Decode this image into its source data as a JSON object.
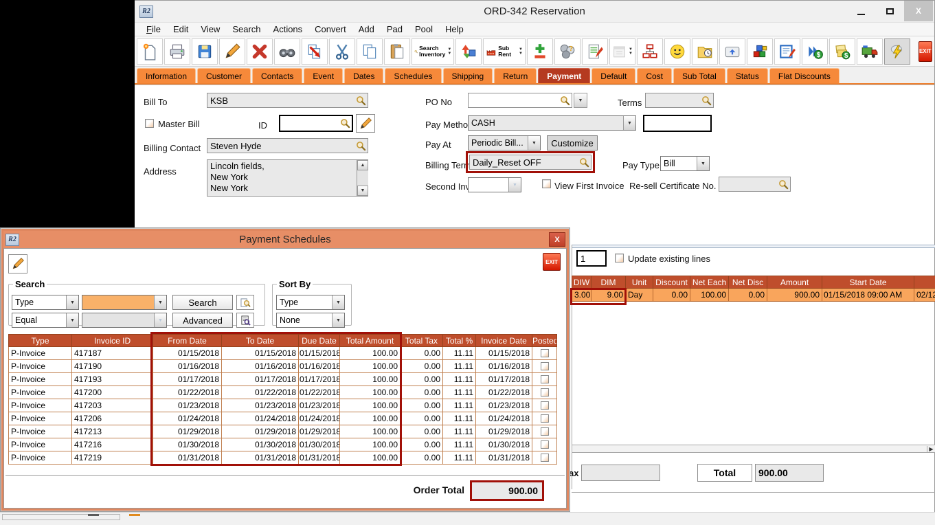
{
  "colors": {
    "accent_orange": "#f6893a",
    "active_tab_red": "#b53a20",
    "grid_header_red": "#bf4e2c",
    "highlight_red": "#a11008",
    "row_orange": "#f9a55c",
    "dialog_titlebar": "#e78e66",
    "exit_red": "#d41800"
  },
  "glyphs": {
    "down": "▼",
    "up": "▲",
    "right": "▶"
  },
  "window": {
    "app_badge": "R2",
    "title": "ORD-342 Reservation",
    "close": "X"
  },
  "menu": {
    "items": [
      "File",
      "Edit",
      "View",
      "Search",
      "Actions",
      "Convert",
      "Add",
      "Pad",
      "Pool",
      "Help"
    ]
  },
  "toolbar": {
    "search_inventory_line1": "Search",
    "search_inventory_line2": "Inventory",
    "sub_rent": "Sub Rent",
    "exit": "EXIT",
    "icons": [
      "new-document",
      "print",
      "save",
      "edit-pencil",
      "delete",
      "find-binoculars",
      "copy-special",
      "cut",
      "copy",
      "paste",
      "search-inventory",
      "transfer",
      "sub-rent",
      "add-line",
      "group-question",
      "notepad",
      "calendar",
      "hierarchy",
      "smiley",
      "folder-clock",
      "keyboard-key",
      "cubes",
      "memo-edit",
      "dollar-forward",
      "invoice-dollar",
      "truck",
      "lightning",
      "exit"
    ]
  },
  "tabs": {
    "active": "Payment",
    "items": [
      "Information",
      "Customer",
      "Contacts",
      "Event",
      "Dates",
      "Schedules",
      "Shipping",
      "Return",
      "Payment",
      "Default",
      "Cost",
      "Sub Total",
      "Status",
      "Flat Discounts"
    ]
  },
  "form": {
    "bill_to": {
      "label": "Bill To",
      "value": "KSB"
    },
    "po_no": {
      "label": "PO No",
      "value": ""
    },
    "terms": {
      "label": "Terms",
      "value": ""
    },
    "master_bill": {
      "label": "Master Bill",
      "checked": false
    },
    "id": {
      "label": "ID",
      "value": ""
    },
    "pay_method": {
      "label": "Pay Method",
      "value": "CASH"
    },
    "pay_method_extra": {
      "value": ""
    },
    "pay_at": {
      "label": "Pay At",
      "value": "Periodic Bill...",
      "customize": "Customize"
    },
    "billing_contact": {
      "label": "Billing Contact",
      "value": "Steven Hyde"
    },
    "address": {
      "label": "Address",
      "lines": [
        "Lincoln fields,",
        "New York",
        "New York"
      ]
    },
    "billing_terms": {
      "label": "Billing Terms",
      "value": "Daily_Reset OFF",
      "highlighted": true
    },
    "pay_type": {
      "label": "Pay Type",
      "value": "Bill"
    },
    "second_invoice_date": {
      "label": "Second Invoice Date",
      "value": ""
    },
    "view_first_invoice": {
      "label": "View First Invoice",
      "checked": false
    },
    "resell_cert": {
      "label": "Re-sell Certificate No.",
      "value": ""
    }
  },
  "lines_panel": {
    "line_count": "1",
    "update_existing_label": "Update existing lines",
    "update_existing_checked": false,
    "table": {
      "columns": [
        "DIW",
        "DIM",
        "Unit",
        "Discount",
        "Net Each",
        "Net Disc",
        "Amount",
        "Start Date",
        ""
      ],
      "row": [
        "3.00",
        "9.00",
        "Day",
        "0.00",
        "100.00",
        "0.00",
        "900.00",
        "01/15/2018 09:00 AM",
        "02/12/"
      ]
    },
    "tax_label": "Tax",
    "tax_value": "",
    "total_label": "Total",
    "total_value": "900.00"
  },
  "dialog": {
    "title": "Payment Schedules",
    "close": "X",
    "exit": "EXIT",
    "search": {
      "legend": "Search",
      "field_value": "Type",
      "criteria_value": "",
      "operator_value": "Equal",
      "operator_criteria_value": "",
      "search_button": "Search",
      "advanced_button": "Advanced"
    },
    "sort_by": {
      "legend": "Sort By",
      "primary": "Type",
      "secondary": "None"
    },
    "table": {
      "columns": [
        "Type",
        "Invoice ID",
        "From Date",
        "To Date",
        "Due Date",
        "Total Amount",
        "Total Tax",
        "Total %",
        "Invoice Date",
        "Posted"
      ],
      "rows": [
        [
          "P-Invoice",
          "417187",
          "01/15/2018",
          "01/15/2018",
          "01/15/2018",
          "100.00",
          "0.00",
          "11.11",
          "01/15/2018"
        ],
        [
          "P-Invoice",
          "417190",
          "01/16/2018",
          "01/16/2018",
          "01/16/2018",
          "100.00",
          "0.00",
          "11.11",
          "01/16/2018"
        ],
        [
          "P-Invoice",
          "417193",
          "01/17/2018",
          "01/17/2018",
          "01/17/2018",
          "100.00",
          "0.00",
          "11.11",
          "01/17/2018"
        ],
        [
          "P-Invoice",
          "417200",
          "01/22/2018",
          "01/22/2018",
          "01/22/2018",
          "100.00",
          "0.00",
          "11.11",
          "01/22/2018"
        ],
        [
          "P-Invoice",
          "417203",
          "01/23/2018",
          "01/23/2018",
          "01/23/2018",
          "100.00",
          "0.00",
          "11.11",
          "01/23/2018"
        ],
        [
          "P-Invoice",
          "417206",
          "01/24/2018",
          "01/24/2018",
          "01/24/2018",
          "100.00",
          "0.00",
          "11.11",
          "01/24/2018"
        ],
        [
          "P-Invoice",
          "417213",
          "01/29/2018",
          "01/29/2018",
          "01/29/2018",
          "100.00",
          "0.00",
          "11.11",
          "01/29/2018"
        ],
        [
          "P-Invoice",
          "417216",
          "01/30/2018",
          "01/30/2018",
          "01/30/2018",
          "100.00",
          "0.00",
          "11.11",
          "01/30/2018"
        ],
        [
          "P-Invoice",
          "417219",
          "01/31/2018",
          "01/31/2018",
          "01/31/2018",
          "100.00",
          "0.00",
          "11.11",
          "01/31/2018"
        ]
      ],
      "posted_checked": false
    },
    "order_total": {
      "label": "Order Total",
      "value": "900.00"
    }
  }
}
